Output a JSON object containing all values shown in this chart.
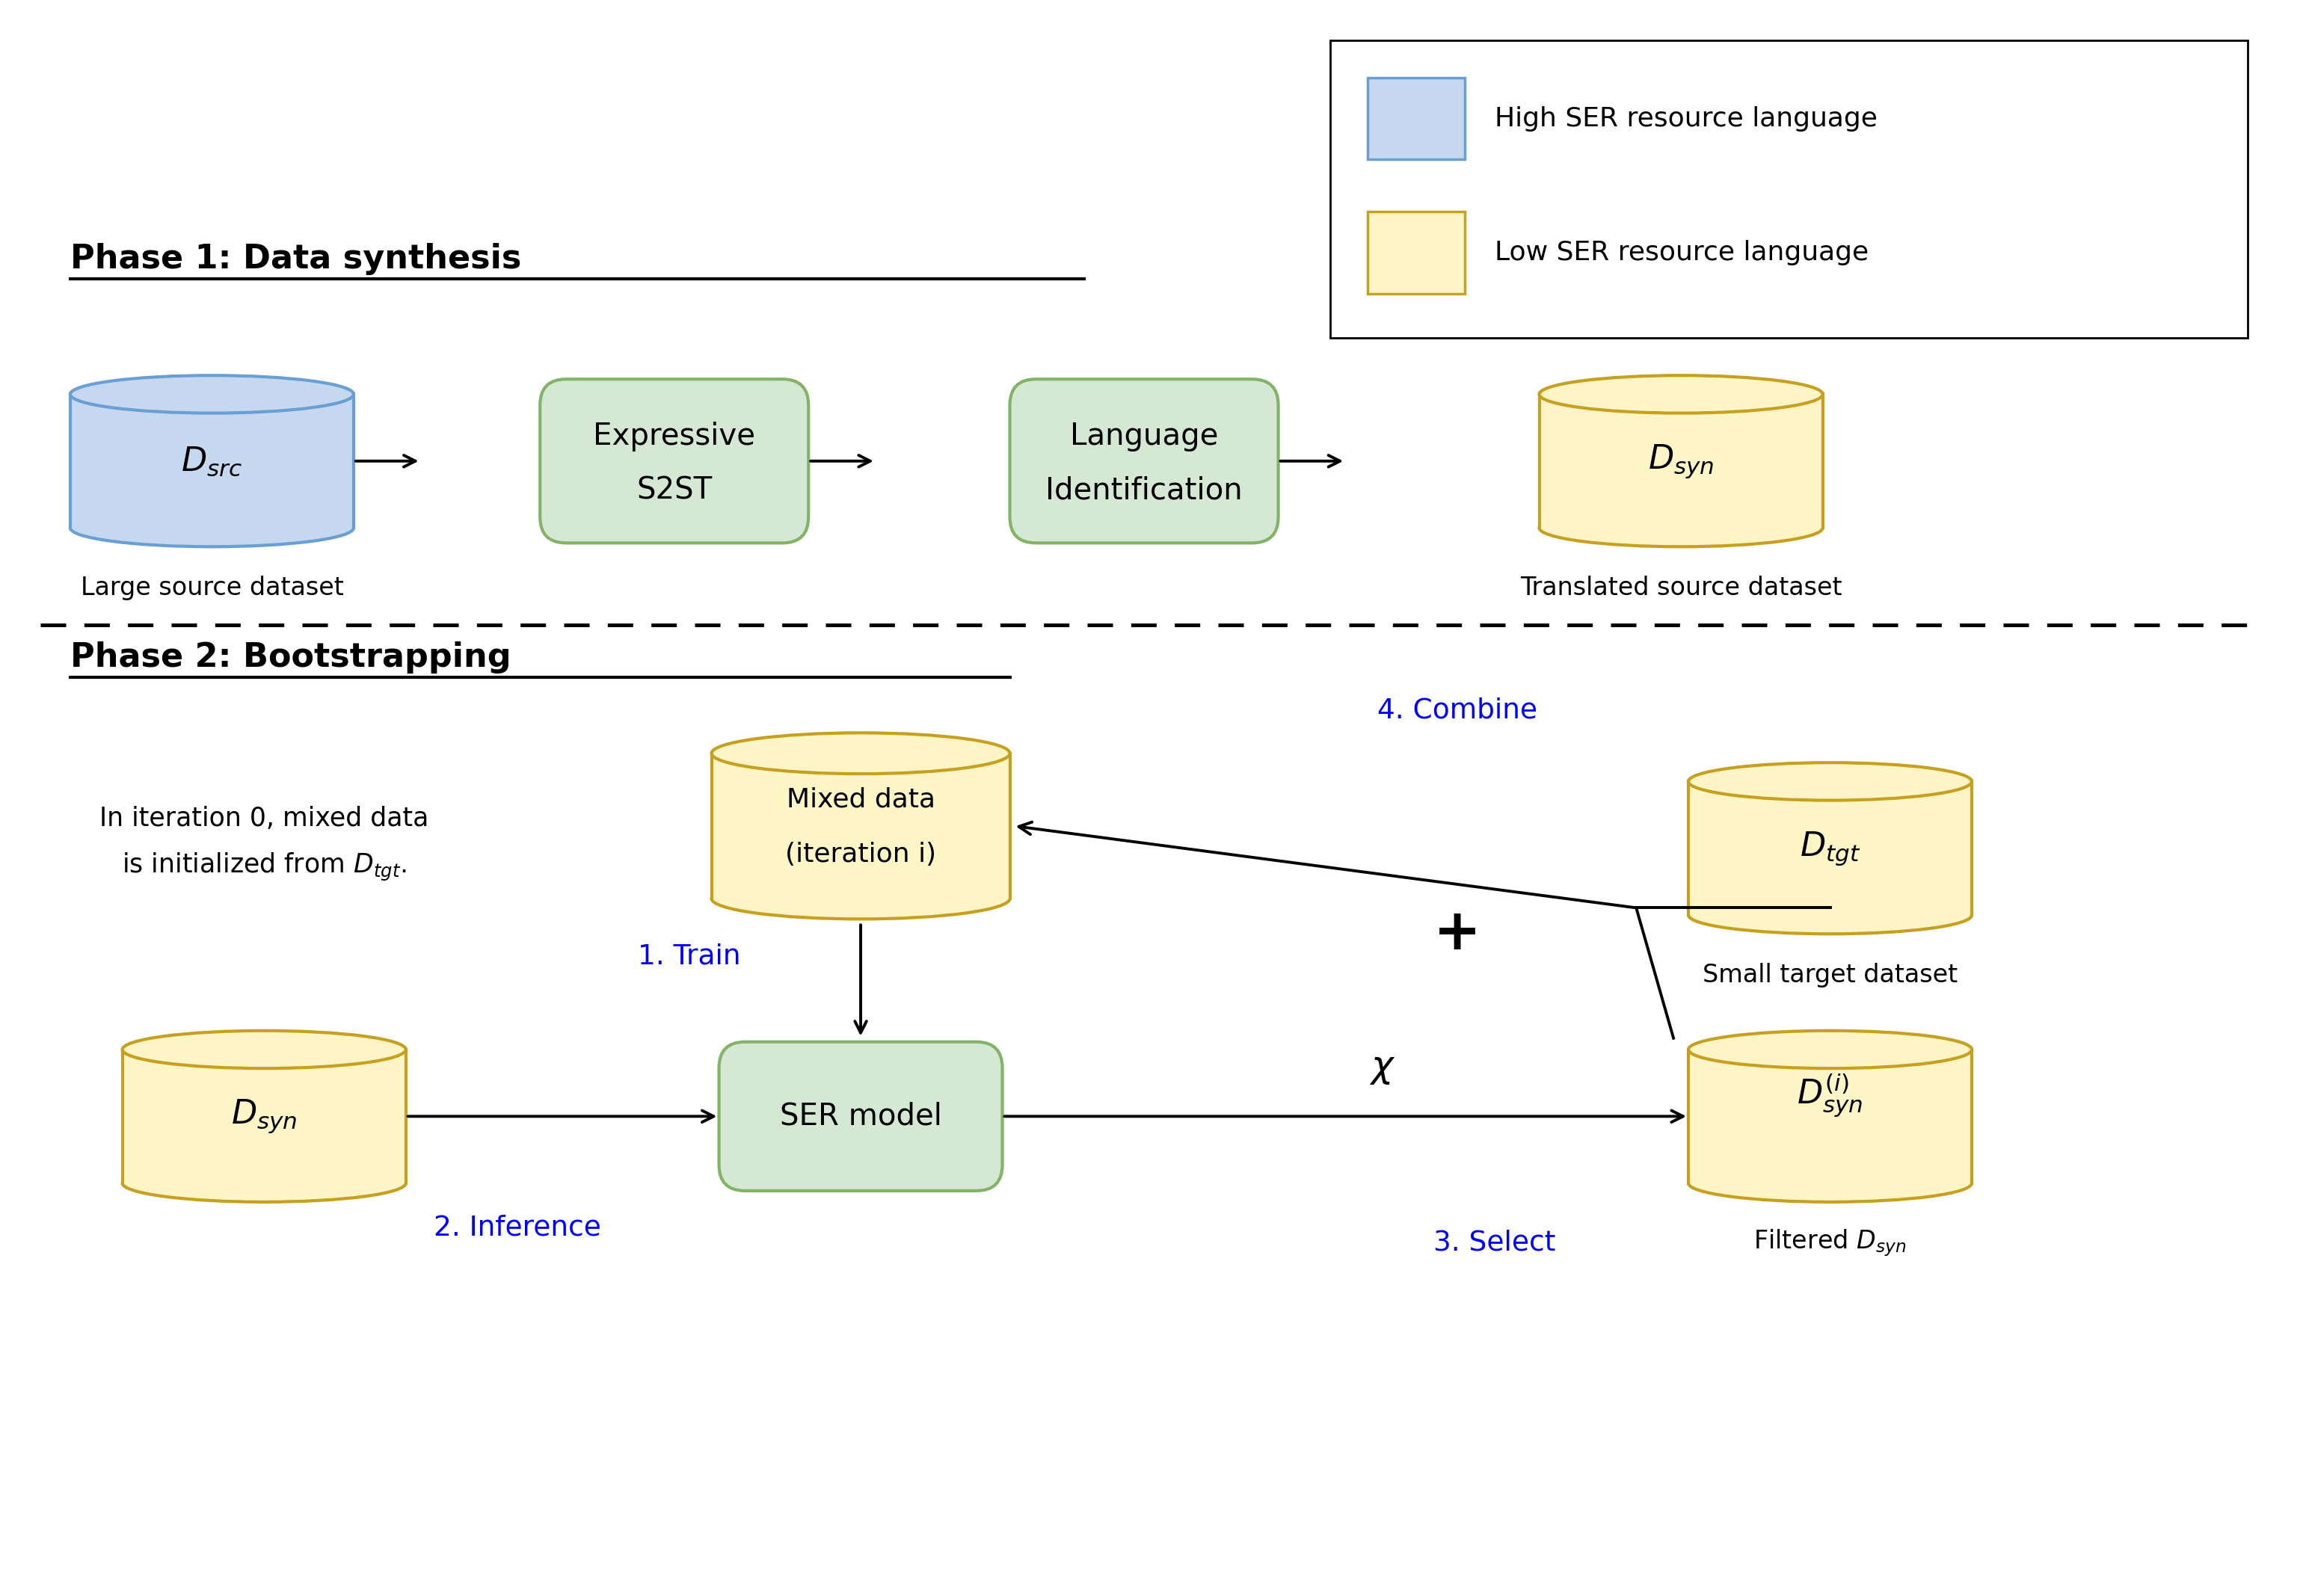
{
  "bg_color": "#ffffff",
  "blue_fill": "#c5d8f0",
  "blue_edge": "#6a9fd4",
  "yellow_fill": "#fdf5c5",
  "yellow_edge": "#c8a020",
  "green_fill": "#d5e8d4",
  "green_edge": "#82b366",
  "legend_blue_fill": "#c5d8f0",
  "legend_blue_edge": "#6a9fd4",
  "legend_yellow_fill": "#fdf5c5",
  "legend_yellow_edge": "#c8a020",
  "phase1_label": "Phase 1: Data synthesis",
  "phase2_label": "Phase 2: Bootstrapping",
  "legend_high": "High SER resource language",
  "legend_low": "Low SER resource language"
}
